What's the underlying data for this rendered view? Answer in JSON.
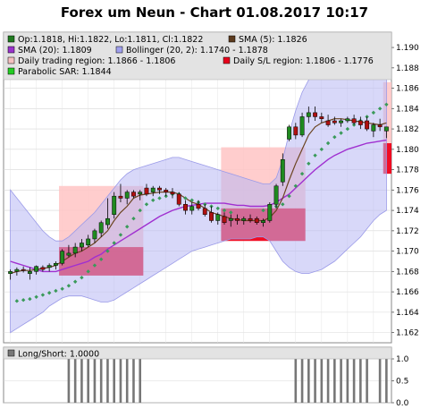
{
  "chart_data": {
    "type": "candlestick",
    "title": "Forex um Neun - Chart 01.08.2017 10:17",
    "price_panel": {
      "ylim": [
        1.161,
        1.1915
      ],
      "y_ticks": [
        "1.190",
        "1.188",
        "1.186",
        "1.184",
        "1.182",
        "1.180",
        "1.178",
        "1.176",
        "1.174",
        "1.172",
        "1.170",
        "1.168",
        "1.166",
        "1.164",
        "1.162"
      ],
      "legend": [
        {
          "label": "Op:1.1818, Hi:1.1822, Lo:1.1811, Cl:1.1822",
          "color": "#1f7a1f",
          "type": "swatch"
        },
        {
          "label": "SMA (5): 1.1826",
          "color": "#5c3a1e",
          "type": "swatch"
        },
        {
          "label": "SMA (20): 1.1809",
          "color": "#9933cc",
          "type": "swatch"
        },
        {
          "label": "Bollinger (20, 2): 1.1740 - 1.1878",
          "color": "#a0a0ee",
          "type": "swatch"
        },
        {
          "label": "Daily trading region: 1.1866 - 1.1806",
          "color": "#f4c0c0",
          "type": "swatch"
        },
        {
          "label": "Daily S/L region: 1.1806 - 1.1776",
          "color": "#e8001c",
          "type": "swatch"
        },
        {
          "label": "Parabolic SAR: 1.1844",
          "color": "#22cc22",
          "type": "swatch"
        }
      ],
      "candles": [
        [
          1.1678,
          1.1682,
          1.1672,
          1.168
        ],
        [
          1.168,
          1.1684,
          1.1676,
          1.1682
        ],
        [
          1.1682,
          1.1685,
          1.1679,
          1.1681
        ],
        [
          1.1678,
          1.1684,
          1.1672,
          1.168
        ],
        [
          1.168,
          1.1686,
          1.1677,
          1.1685
        ],
        [
          1.1684,
          1.1686,
          1.168,
          1.1682
        ],
        [
          1.1684,
          1.1688,
          1.168,
          1.1686
        ],
        [
          1.1686,
          1.169,
          1.1682,
          1.1688
        ],
        [
          1.1688,
          1.1702,
          1.1686,
          1.17
        ],
        [
          1.1696,
          1.1706,
          1.1694,
          1.1698
        ],
        [
          1.1698,
          1.1708,
          1.1694,
          1.1704
        ],
        [
          1.1704,
          1.1712,
          1.17,
          1.1708
        ],
        [
          1.1706,
          1.1716,
          1.1704,
          1.1712
        ],
        [
          1.1712,
          1.1722,
          1.1708,
          1.172
        ],
        [
          1.1718,
          1.173,
          1.1714,
          1.1728
        ],
        [
          1.1726,
          1.1752,
          1.1722,
          1.1732
        ],
        [
          1.1736,
          1.1758,
          1.1732,
          1.1754
        ],
        [
          1.1754,
          1.1766,
          1.1748,
          1.1752
        ],
        [
          1.1752,
          1.176,
          1.1746,
          1.1758
        ],
        [
          1.1758,
          1.176,
          1.1752,
          1.1754
        ],
        [
          1.1756,
          1.176,
          1.175,
          1.1758
        ],
        [
          1.1762,
          1.1766,
          1.1754,
          1.1756
        ],
        [
          1.1758,
          1.1764,
          1.1754,
          1.1762
        ],
        [
          1.1762,
          1.1764,
          1.1756,
          1.176
        ],
        [
          1.176,
          1.1762,
          1.1754,
          1.1758
        ],
        [
          1.1758,
          1.1762,
          1.1752,
          1.1756
        ],
        [
          1.1756,
          1.1758,
          1.1744,
          1.1746
        ],
        [
          1.1746,
          1.175,
          1.1736,
          1.174
        ],
        [
          1.174,
          1.1748,
          1.1736,
          1.1744
        ],
        [
          1.1746,
          1.175,
          1.174,
          1.1742
        ],
        [
          1.1742,
          1.1746,
          1.1734,
          1.1736
        ],
        [
          1.1738,
          1.1744,
          1.1728,
          1.173
        ],
        [
          1.173,
          1.1738,
          1.1726,
          1.1736
        ],
        [
          1.1734,
          1.1738,
          1.1726,
          1.1728
        ],
        [
          1.173,
          1.1736,
          1.1724,
          1.1732
        ],
        [
          1.1732,
          1.1736,
          1.1726,
          1.173
        ],
        [
          1.173,
          1.1734,
          1.1726,
          1.1732
        ],
        [
          1.1732,
          1.1736,
          1.1728,
          1.173
        ],
        [
          1.1732,
          1.1734,
          1.1726,
          1.1728
        ],
        [
          1.1728,
          1.1732,
          1.1724,
          1.173
        ],
        [
          1.173,
          1.1748,
          1.1728,
          1.1746
        ],
        [
          1.1746,
          1.1766,
          1.1742,
          1.1764
        ],
        [
          1.1768,
          1.1796,
          1.1764,
          1.179
        ],
        [
          1.181,
          1.1824,
          1.1808,
          1.1822
        ],
        [
          1.1822,
          1.1826,
          1.181,
          1.1814
        ],
        [
          1.1814,
          1.1836,
          1.1812,
          1.1832
        ],
        [
          1.1832,
          1.1842,
          1.1826,
          1.1836
        ],
        [
          1.1836,
          1.1842,
          1.1828,
          1.1832
        ],
        [
          1.1832,
          1.1836,
          1.1826,
          1.183
        ],
        [
          1.1828,
          1.1834,
          1.1822,
          1.1824
        ],
        [
          1.1828,
          1.1832,
          1.1824,
          1.1826
        ],
        [
          1.1826,
          1.183,
          1.1822,
          1.1828
        ],
        [
          1.1828,
          1.1832,
          1.1826,
          1.183
        ],
        [
          1.183,
          1.1834,
          1.1824,
          1.1826
        ],
        [
          1.1828,
          1.1832,
          1.182,
          1.1824
        ],
        [
          1.1828,
          1.1832,
          1.1818,
          1.182
        ],
        [
          1.1818,
          1.1826,
          1.1812,
          1.1824
        ],
        [
          1.1824,
          1.183,
          1.1818,
          1.1822
        ],
        [
          1.1818,
          1.1822,
          1.1811,
          1.1822
        ]
      ],
      "sma5": [
        1.1678,
        1.168,
        1.1681,
        1.1681,
        1.1682,
        1.1683,
        1.1684,
        1.1686,
        1.169,
        1.1694,
        1.1698,
        1.17,
        1.1704,
        1.1708,
        1.1714,
        1.172,
        1.173,
        1.1738,
        1.1744,
        1.1752,
        1.1755,
        1.1756,
        1.1757,
        1.1758,
        1.1758,
        1.1758,
        1.1756,
        1.1752,
        1.1748,
        1.1746,
        1.1742,
        1.1738,
        1.1736,
        1.1734,
        1.1732,
        1.1731,
        1.173,
        1.173,
        1.173,
        1.173,
        1.1733,
        1.174,
        1.1752,
        1.177,
        1.1786,
        1.18,
        1.1814,
        1.1822,
        1.1826,
        1.1828,
        1.183,
        1.183,
        1.1829,
        1.1828,
        1.1827,
        1.1826,
        1.1825,
        1.1824,
        1.1826
      ],
      "sma20": [
        1.169,
        1.1688,
        1.1686,
        1.1684,
        1.1682,
        1.168,
        1.168,
        1.168,
        1.1682,
        1.1684,
        1.1686,
        1.1688,
        1.169,
        1.1694,
        1.1697,
        1.1702,
        1.1706,
        1.171,
        1.1714,
        1.1718,
        1.1722,
        1.1726,
        1.173,
        1.1734,
        1.1737,
        1.174,
        1.1742,
        1.1744,
        1.1745,
        1.1746,
        1.1747,
        1.1747,
        1.1747,
        1.1747,
        1.1746,
        1.1745,
        1.1745,
        1.1744,
        1.1744,
        1.1744,
        1.1745,
        1.1748,
        1.1752,
        1.1756,
        1.1762,
        1.1768,
        1.1774,
        1.178,
        1.1785,
        1.179,
        1.1794,
        1.1797,
        1.18,
        1.1802,
        1.1804,
        1.1806,
        1.1807,
        1.1808,
        1.1809
      ],
      "boll_upper": [
        1.176,
        1.1752,
        1.1744,
        1.1736,
        1.1728,
        1.172,
        1.1714,
        1.171,
        1.171,
        1.1714,
        1.172,
        1.1726,
        1.1732,
        1.1738,
        1.1746,
        1.1754,
        1.1762,
        1.177,
        1.1776,
        1.178,
        1.1782,
        1.1784,
        1.1786,
        1.1788,
        1.179,
        1.1792,
        1.1792,
        1.179,
        1.1788,
        1.1786,
        1.1784,
        1.1782,
        1.178,
        1.1778,
        1.1776,
        1.1774,
        1.1772,
        1.177,
        1.1768,
        1.1766,
        1.1766,
        1.1772,
        1.179,
        1.1816,
        1.1838,
        1.1856,
        1.1868,
        1.1876,
        1.188,
        1.1884,
        1.1886,
        1.1887,
        1.1888,
        1.1888,
        1.1888,
        1.1888,
        1.1887,
        1.1886,
        1.1878
      ],
      "boll_lower": [
        1.162,
        1.1624,
        1.1628,
        1.1632,
        1.1636,
        1.164,
        1.1646,
        1.165,
        1.1654,
        1.1656,
        1.1656,
        1.1656,
        1.1654,
        1.1652,
        1.165,
        1.165,
        1.1652,
        1.1656,
        1.166,
        1.1664,
        1.1668,
        1.1672,
        1.1676,
        1.168,
        1.1684,
        1.1688,
        1.1692,
        1.1696,
        1.17,
        1.1702,
        1.1704,
        1.1706,
        1.1708,
        1.171,
        1.1712,
        1.1712,
        1.1712,
        1.1712,
        1.1714,
        1.1714,
        1.171,
        1.17,
        1.169,
        1.1684,
        1.168,
        1.1678,
        1.1678,
        1.168,
        1.1682,
        1.1686,
        1.169,
        1.1696,
        1.1702,
        1.1708,
        1.1714,
        1.1722,
        1.173,
        1.1736,
        1.174
      ],
      "sar": [
        null,
        1.1651,
        1.1652,
        1.1653,
        1.1655,
        1.1657,
        1.1659,
        1.1661,
        1.1663,
        1.1666,
        1.167,
        1.1674,
        1.168,
        1.1686,
        1.1692,
        1.17,
        1.1708,
        1.1716,
        1.1724,
        1.1732,
        1.174,
        1.1746,
        1.175,
        1.1752,
        1.1754,
        1.1756,
        1.1756,
        1.1752,
        1.175,
        1.1748,
        1.1746,
        1.1744,
        1.1742,
        1.174,
        1.1738,
        null,
        null,
        null,
        null,
        1.174,
        1.1742,
        1.1744,
        1.1746,
        1.1754,
        1.1764,
        1.1776,
        1.1786,
        1.1794,
        1.18,
        1.1806,
        1.1812,
        1.1816,
        1.182,
        1.1824,
        1.1828,
        1.1832,
        1.1836,
        1.184,
        1.1844
      ],
      "zones": [
        {
          "from": 8,
          "to": 20,
          "trade_top": 1.1764,
          "trade_bottom": 1.1704,
          "sl_top": 1.1704,
          "sl_bottom": 1.1676
        },
        {
          "from": 33,
          "to": 45,
          "trade_top": 1.1802,
          "trade_bottom": 1.1742,
          "sl_top": 1.1742,
          "sl_bottom": 1.171
        },
        {
          "from": 58,
          "to": 61,
          "trade_top": 1.1866,
          "trade_bottom": 1.1806,
          "sl_top": 1.1806,
          "sl_bottom": 1.1776
        }
      ]
    },
    "indicator_panel": {
      "legend": "Long/Short: 1.0000",
      "ylim": [
        0,
        1
      ],
      "y_ticks": [
        "1.0",
        "0.5",
        "0.0"
      ],
      "values": [
        0,
        0,
        0,
        0,
        0,
        0,
        0,
        0,
        0,
        1,
        1,
        1,
        1,
        1,
        1,
        1,
        1,
        1,
        1,
        1,
        1,
        0,
        0,
        0,
        0,
        0,
        0,
        0,
        0,
        0,
        0,
        0,
        0,
        0,
        0,
        0,
        0,
        0,
        0,
        0,
        0,
        0,
        0,
        0,
        1,
        1,
        1,
        1,
        1,
        1,
        1,
        1,
        1,
        1,
        1,
        1,
        0,
        1,
        1
      ]
    }
  }
}
